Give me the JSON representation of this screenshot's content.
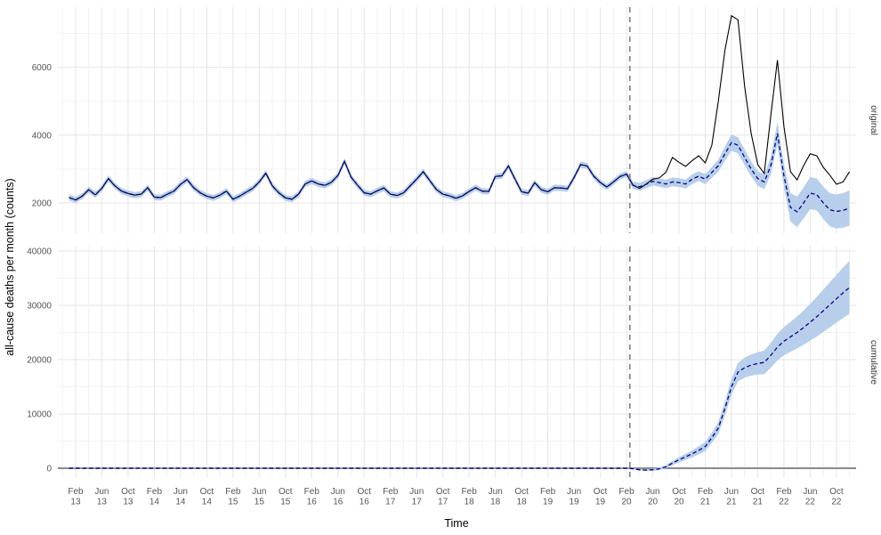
{
  "chart_data": {
    "type": "line",
    "title": "",
    "xlabel": "Time",
    "ylabel": "all-cause deaths per month (counts)",
    "x_monthly_from": "2013-01",
    "x_monthly_to": "2022-12",
    "x_tick_labels": [
      "Feb 13",
      "Jun 13",
      "Oct 13",
      "Feb 14",
      "Jun 14",
      "Oct 14",
      "Feb 15",
      "Jun 15",
      "Oct 15",
      "Feb 16",
      "Jun 16",
      "Oct 16",
      "Feb 17",
      "Jun 17",
      "Oct 17",
      "Feb 18",
      "Jun 18",
      "Oct 18",
      "Feb 19",
      "Jun 19",
      "Oct 19",
      "Feb 20",
      "Jun 20",
      "Oct 20",
      "Feb 21",
      "Jun 21",
      "Oct 21",
      "Feb 22",
      "Jun 22",
      "Oct 22"
    ],
    "vline": {
      "x_label": "Feb 2020",
      "month_index": 85.5,
      "style": "dashed",
      "color": "#888888"
    },
    "grid": true,
    "legend": false,
    "colors": {
      "observed": "#000000",
      "expected": "#00008B",
      "ribbon": "#B7CFEA",
      "hline_zero": "#8A8A8A",
      "grid_major": "#E5E5E5",
      "grid_minor": "#F2F2F2",
      "axis_text": "#555555"
    },
    "facets": [
      {
        "name": "original",
        "ylim": [
          1100,
          7780
        ],
        "yticks": [
          2000,
          4000,
          6000
        ],
        "yminor": [
          3000,
          5000,
          7000
        ],
        "series": [
          {
            "name": "observed",
            "type": "line",
            "color": "#000000",
            "linetype": "solid",
            "values": [
              2160,
              2090,
              2200,
              2390,
              2240,
              2430,
              2720,
              2500,
              2350,
              2280,
              2230,
              2260,
              2450,
              2170,
              2160,
              2260,
              2350,
              2550,
              2690,
              2450,
              2300,
              2200,
              2150,
              2230,
              2350,
              2110,
              2200,
              2320,
              2430,
              2620,
              2880,
              2500,
              2300,
              2150,
              2110,
              2260,
              2560,
              2650,
              2560,
              2520,
              2610,
              2810,
              3230,
              2760,
              2520,
              2300,
              2260,
              2360,
              2440,
              2260,
              2220,
              2300,
              2500,
              2700,
              2920,
              2660,
              2400,
              2260,
              2210,
              2140,
              2210,
              2340,
              2450,
              2350,
              2340,
              2780,
              2800,
              3090,
              2700,
              2330,
              2290,
              2600,
              2390,
              2330,
              2450,
              2440,
              2420,
              2750,
              3130,
              3090,
              2790,
              2600,
              2470,
              2620,
              2780,
              2850,
              2520,
              2430,
              2560,
              2700,
              2740,
              2900,
              3340,
              3200,
              3080,
              3250,
              3390,
              3180,
              3700,
              5000,
              6500,
              7520,
              7400,
              5450,
              4050,
              3130,
              2870,
              4580,
              6210,
              4260,
              2920,
              2680,
              3100,
              3450,
              3390,
              3050,
              2820,
              2550,
              2620,
              2920
            ]
          },
          {
            "name": "expected",
            "type": "line",
            "color": "#00008B",
            "linetype": "dashed",
            "note": "model fit: equals observed through Feb 2020, counterfactual afterwards",
            "values_pre": "observed",
            "post_start_index": 86,
            "values_post": [
              2520,
              2480,
              2550,
              2640,
              2600,
              2560,
              2620,
              2600,
              2560,
              2700,
              2790,
              2700,
              2900,
              3100,
              3450,
              3780,
              3700,
              3350,
              3000,
              2720,
              2620,
              3100,
              4050,
              2800,
              1870,
              1740,
              2000,
              2290,
              2250,
              2000,
              1800,
              1750,
              1780,
              1850
            ],
            "interval_halfwidth_pre": 90,
            "interval_halfwidth_post": [
              110,
              115,
              120,
              120,
              125,
              125,
              130,
              130,
              135,
              140,
              145,
              150,
              160,
              180,
              210,
              240,
              240,
              230,
              220,
              215,
              215,
              260,
              330,
              330,
              420,
              450,
              460,
              470,
              470,
              480,
              490,
              500,
              510,
              520
            ],
            "interval_color": "#B7CFEA"
          }
        ]
      },
      {
        "name": "cumulative",
        "ylim": [
          -1800,
          40650
        ],
        "yticks": [
          0,
          10000,
          20000,
          30000,
          40000
        ],
        "yminor": [
          5000,
          15000,
          25000,
          35000
        ],
        "hline_y": 0,
        "series": [
          {
            "name": "cumulative_excess",
            "type": "line",
            "color": "#00008B",
            "linetype": "dashed",
            "values_pre_constant": 0,
            "post_start_index": 86,
            "values_post": [
              -100,
              -300,
              -350,
              -280,
              -100,
              250,
              950,
              1550,
              2100,
              2650,
              3300,
              4000,
              5600,
              7400,
              11000,
              15000,
              17700,
              18500,
              19000,
              19300,
              19500,
              20800,
              22300,
              23400,
              24200,
              25000,
              25900,
              26900,
              27900,
              29000,
              30100,
              31200,
              32300,
              33300
            ],
            "interval_halfwidth_pre": 40,
            "interval_halfwidth_post": [
              80,
              120,
              160,
              200,
              250,
              320,
              400,
              480,
              560,
              650,
              750,
              850,
              950,
              1100,
              1300,
              1500,
              1700,
              1850,
              1950,
              2050,
              2150,
              2300,
              2450,
              2600,
              2750,
              2950,
              3150,
              3400,
              3650,
              3900,
              4150,
              4400,
              4650,
              4900
            ],
            "interval_color": "#B7CFEA"
          }
        ]
      }
    ]
  }
}
